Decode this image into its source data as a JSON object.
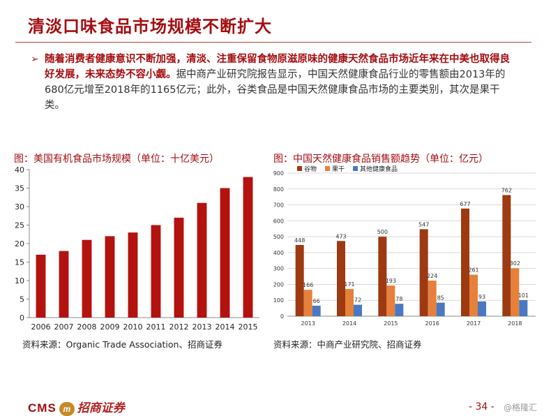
{
  "slide": {
    "title": "清淡口味食品市场规模不断扩大",
    "bullet_bold": "随着消费者健康意识不断加强，清淡、注重保留食物原滋原味的健康天然食品市场近年来在中美也取得良好发展，未来态势不容小觑。",
    "bullet_rest": "据中商产业研究院报告显示，中国天然健康食品行业的零售额由2013年的680亿元增至2018年的1165亿元；此外，谷类食品是中国天然健康食品市场的主要类别，其次是果干类。",
    "page_number": "- 34 -",
    "watermark": "@格隆汇",
    "logo_cms": "CMS",
    "logo_mark": "m",
    "logo_cn": "招商证券"
  },
  "colors": {
    "accent": "#a50d10",
    "bar_us": "#b3120f",
    "grain": "#9e3a12",
    "dried_fruit": "#e5813b",
    "other": "#4a78c2"
  },
  "chart_data": [
    {
      "type": "bar",
      "title": "图：美国有机食品市场规模（单位：十亿美元）",
      "categories": [
        "2006",
        "2007",
        "2008",
        "2009",
        "2010",
        "2011",
        "2012",
        "2013",
        "2014",
        "2015"
      ],
      "values": [
        17,
        18,
        21,
        22,
        23,
        25,
        27,
        31,
        35,
        38
      ],
      "ylim": [
        0,
        40
      ],
      "yticks": [
        0,
        5,
        10,
        15,
        20,
        25,
        30,
        35,
        40
      ],
      "grid": false,
      "source": "资料来源：Organic Trade Association、招商证券"
    },
    {
      "type": "bar",
      "title": "图：中国天然健康食品销售额趋势（单位：亿元）",
      "categories": [
        "2013",
        "2014",
        "2015",
        "2016",
        "2017",
        "2018"
      ],
      "series": [
        {
          "name": "谷物",
          "values": [
            448,
            473,
            500,
            547,
            677,
            762
          ]
        },
        {
          "name": "果干",
          "values": [
            166,
            171,
            193,
            224,
            261,
            302
          ]
        },
        {
          "name": "其他健康食品",
          "values": [
            66,
            72,
            78,
            85,
            93,
            101
          ]
        }
      ],
      "ylim": [
        0,
        900
      ],
      "yticks": [
        0,
        100,
        200,
        300,
        400,
        500,
        600,
        700,
        800,
        900
      ],
      "grid": true,
      "legend": "top",
      "data_labels": true,
      "source": "资料来源：中商产业研究院、招商证券"
    }
  ]
}
